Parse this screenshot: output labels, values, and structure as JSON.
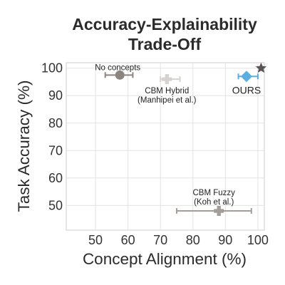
{
  "chart_data": {
    "type": "scatter",
    "title": [
      "Accuracy-Explainability",
      "Trade-Off"
    ],
    "xlabel": "Concept Alignment (%)",
    "ylabel": "Task Accuracy (%)",
    "xlim": [
      41,
      102
    ],
    "ylim": [
      41,
      102
    ],
    "xticks": [
      50,
      60,
      70,
      80,
      90,
      100
    ],
    "yticks": [
      50,
      60,
      70,
      80,
      90,
      100
    ],
    "grid": true,
    "points": [
      {
        "label": [
          "No concepts"
        ],
        "x": 57.5,
        "y": 97.5,
        "xerr": [
          53,
          61.5
        ],
        "marker": "circle",
        "color": "#8c8480"
      },
      {
        "label": [
          "CBM Hybrid",
          "(Manhipei et al.)"
        ],
        "x": 72,
        "y": 96,
        "xerr": [
          70,
          76
        ],
        "marker": "cross",
        "color": "#d6d2ce"
      },
      {
        "label": [
          "OURS"
        ],
        "x": 96.5,
        "y": 97,
        "xerr": [
          94,
          100
        ],
        "marker": "diamond",
        "color": "#5aaee0"
      },
      {
        "label": [
          "CBM Fuzzy",
          "(Koh et al.)"
        ],
        "x": 88,
        "y": 48,
        "xerr": [
          75,
          98
        ],
        "marker": "cross",
        "color": "#a49d99"
      }
    ],
    "ideal_point": {
      "x": 101,
      "y": 100,
      "marker": "star",
      "color": "#5a5352"
    }
  }
}
